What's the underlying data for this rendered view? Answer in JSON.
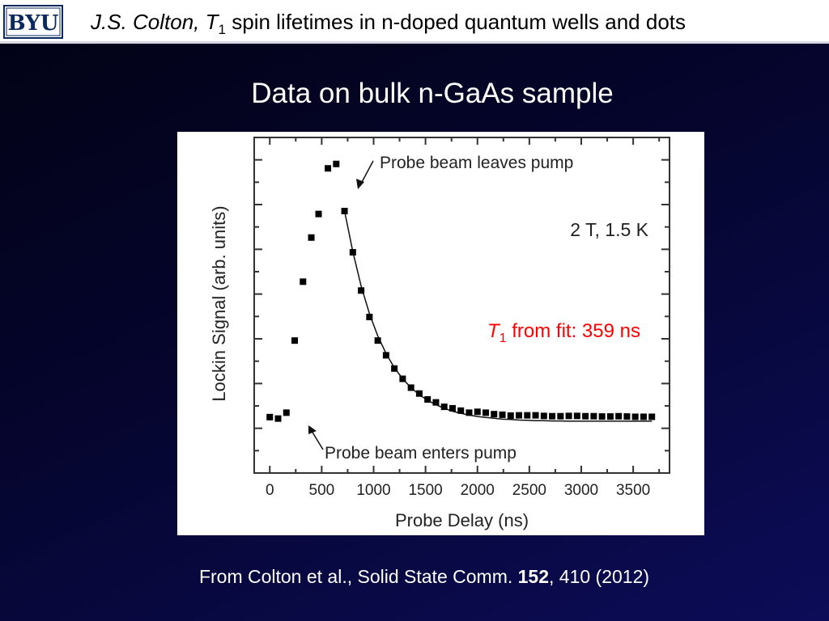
{
  "header": {
    "logo_text": "BYU",
    "author": "J.S. Colton,",
    "symbol": "T",
    "subscript": "1",
    "rest": "spin lifetimes in n-doped quantum wells and dots"
  },
  "title": "Data on bulk n-GaAs sample",
  "citation": {
    "prefix": "From Colton et al., Solid State Comm.",
    "volume": "152",
    "suffix": ", 410 (2012)"
  },
  "colors": {
    "background": "#05052e",
    "header_bg": "#ffffff",
    "fit_text": "#ff0000",
    "marker": "#000000"
  },
  "chart_data": {
    "type": "scatter",
    "xlabel": "Probe Delay (ns)",
    "ylabel": "Lockin Signal (arb. units)",
    "xlim": [
      -150,
      3850
    ],
    "ylim": [
      -0.12,
      1.02
    ],
    "x_ticks": [
      0,
      500,
      1000,
      1500,
      2000,
      2500,
      3000,
      3500
    ],
    "grid": false,
    "condition_label": "2 T, 1.5 K",
    "fit_label": {
      "symbol": "T",
      "subscript": "1",
      "text": "from fit: 359 ns"
    },
    "annotations": [
      {
        "text": "Probe beam leaves pump",
        "x": 640,
        "y": 0.84
      },
      {
        "text": "Probe beam enters pump",
        "x": 150,
        "y": 0.06
      }
    ],
    "series": [
      {
        "kind": "markers",
        "x": [
          0,
          80,
          160,
          240,
          320,
          400,
          470,
          560,
          640,
          720,
          800,
          880,
          960,
          1040,
          1120,
          1200,
          1280,
          1360,
          1440,
          1520,
          1600,
          1680,
          1760,
          1840,
          1920,
          2000,
          2080,
          2160,
          2240,
          2320,
          2400,
          2480,
          2560,
          2640,
          2720,
          2800,
          2880,
          2960,
          3040,
          3120,
          3200,
          3280,
          3360,
          3440,
          3520,
          3600,
          3680
        ],
        "y": [
          0.07,
          0.065,
          0.085,
          0.33,
          0.53,
          0.68,
          0.76,
          0.915,
          0.93,
          0.77,
          0.63,
          0.5,
          0.41,
          0.33,
          0.28,
          0.235,
          0.2,
          0.17,
          0.15,
          0.13,
          0.12,
          0.105,
          0.1,
          0.092,
          0.085,
          0.088,
          0.085,
          0.08,
          0.078,
          0.075,
          0.076,
          0.076,
          0.076,
          0.074,
          0.073,
          0.073,
          0.074,
          0.074,
          0.073,
          0.073,
          0.072,
          0.072,
          0.073,
          0.072,
          0.071,
          0.071,
          0.071
        ]
      },
      {
        "kind": "fit",
        "x": [
          720,
          800,
          880,
          960,
          1040,
          1120,
          1200,
          1280,
          1360,
          1440,
          1520,
          1600,
          1680,
          1760,
          1840,
          1920,
          2000,
          2080,
          2160,
          2240,
          2320,
          2400,
          2480,
          2560,
          2640,
          2720,
          2800,
          2880,
          2960,
          3040,
          3120,
          3200,
          3280,
          3360,
          3440,
          3520,
          3600,
          3680
        ],
        "y": [
          0.77,
          0.632,
          0.515,
          0.421,
          0.346,
          0.286,
          0.238,
          0.2,
          0.17,
          0.146,
          0.127,
          0.112,
          0.1,
          0.09,
          0.083,
          0.077,
          0.072,
          0.069,
          0.066,
          0.063,
          0.062,
          0.06,
          0.059,
          0.058,
          0.058,
          0.057,
          0.057,
          0.056,
          0.056,
          0.056,
          0.056,
          0.056,
          0.056,
          0.056,
          0.056,
          0.056,
          0.056,
          0.056
        ]
      }
    ]
  }
}
